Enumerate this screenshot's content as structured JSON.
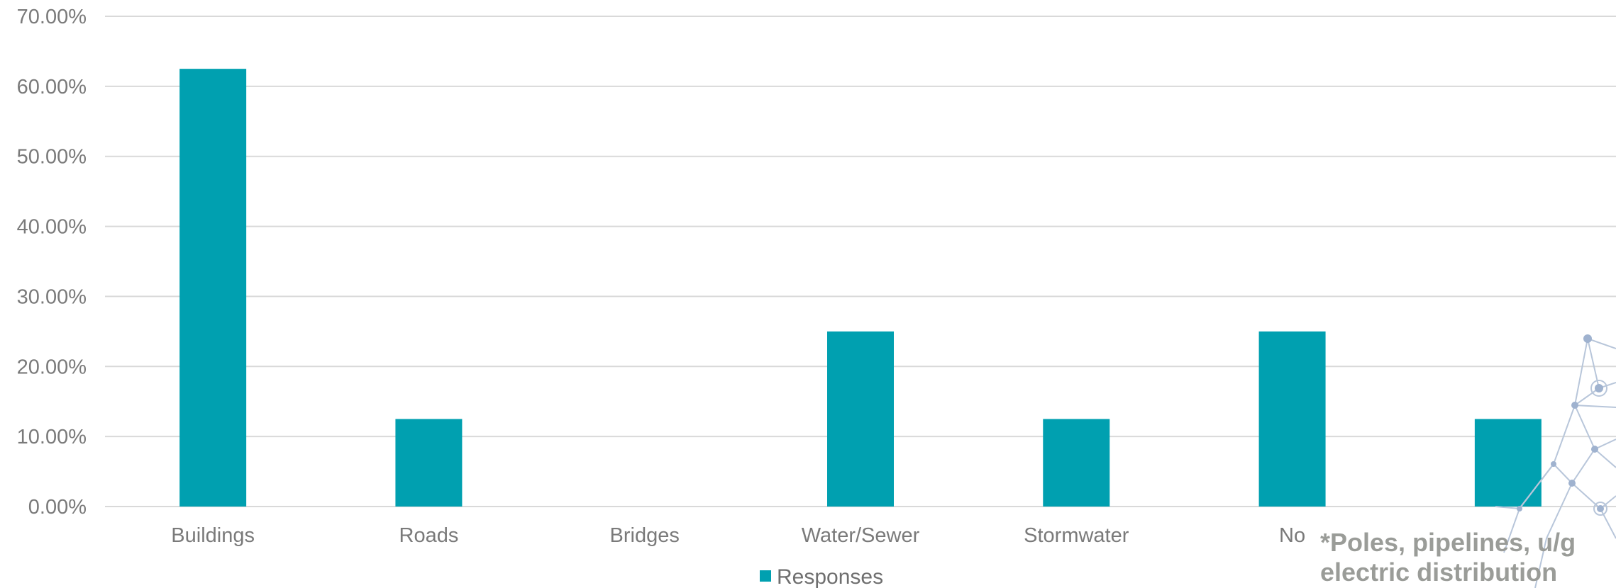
{
  "chart_data": {
    "type": "bar",
    "categories": [
      "Buildings",
      "Roads",
      "Bridges",
      "Water/Sewer",
      "Stormwater",
      "No",
      ""
    ],
    "series": [
      {
        "name": "Responses",
        "values": [
          62.5,
          12.5,
          0,
          25,
          12.5,
          25,
          12.5
        ]
      }
    ],
    "y_tick_labels": [
      "0.00%",
      "10.00%",
      "20.00%",
      "30.00%",
      "40.00%",
      "50.00%",
      "60.00%",
      "70.00%"
    ],
    "ylim": [
      0,
      70
    ],
    "ytick_step": 10,
    "grid": true,
    "legend_position": "bottom",
    "bar_color": "#00a0b0",
    "annotations": [
      "*Poles, pipelines, u/g",
      "electric distribution"
    ]
  },
  "legend": {
    "label": "Responses"
  },
  "footnote": {
    "line1": "*Poles, pipelines, u/g",
    "line2": "electric distribution"
  }
}
